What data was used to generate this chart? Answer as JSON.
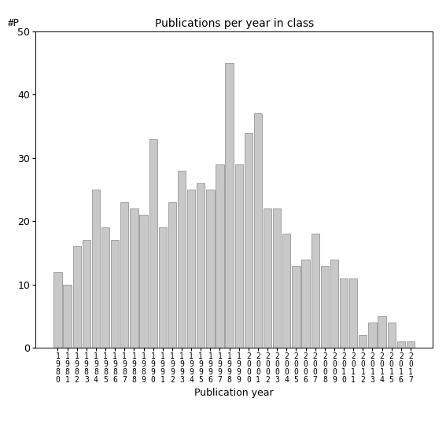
{
  "title": "Publications per year in class",
  "xlabel": "Publication year",
  "ylabel": "#P",
  "bar_color": "#c8c8c8",
  "bar_edge_color": "#888888",
  "ylim": [
    0,
    50
  ],
  "yticks": [
    0,
    10,
    20,
    30,
    40,
    50
  ],
  "years": [
    1980,
    1981,
    1982,
    1983,
    1984,
    1985,
    1986,
    1987,
    1988,
    1989,
    1990,
    1991,
    1992,
    1993,
    1994,
    1995,
    1996,
    1997,
    1998,
    1999,
    2000,
    2001,
    2002,
    2003,
    2004,
    2005,
    2006,
    2007,
    2008,
    2009,
    2010,
    2011,
    2012,
    2013,
    2014,
    2015,
    2016,
    2017
  ],
  "values": [
    12,
    10,
    16,
    17,
    25,
    19,
    17,
    23,
    22,
    21,
    33,
    19,
    23,
    28,
    25,
    26,
    25,
    29,
    45,
    29,
    34,
    37,
    22,
    22,
    18,
    13,
    14,
    18,
    13,
    14,
    11,
    11,
    2,
    4,
    5,
    4,
    1,
    1
  ],
  "background_color": "#ffffff",
  "title_fontsize": 10,
  "label_fontsize": 9,
  "tick_fontsize": 7
}
